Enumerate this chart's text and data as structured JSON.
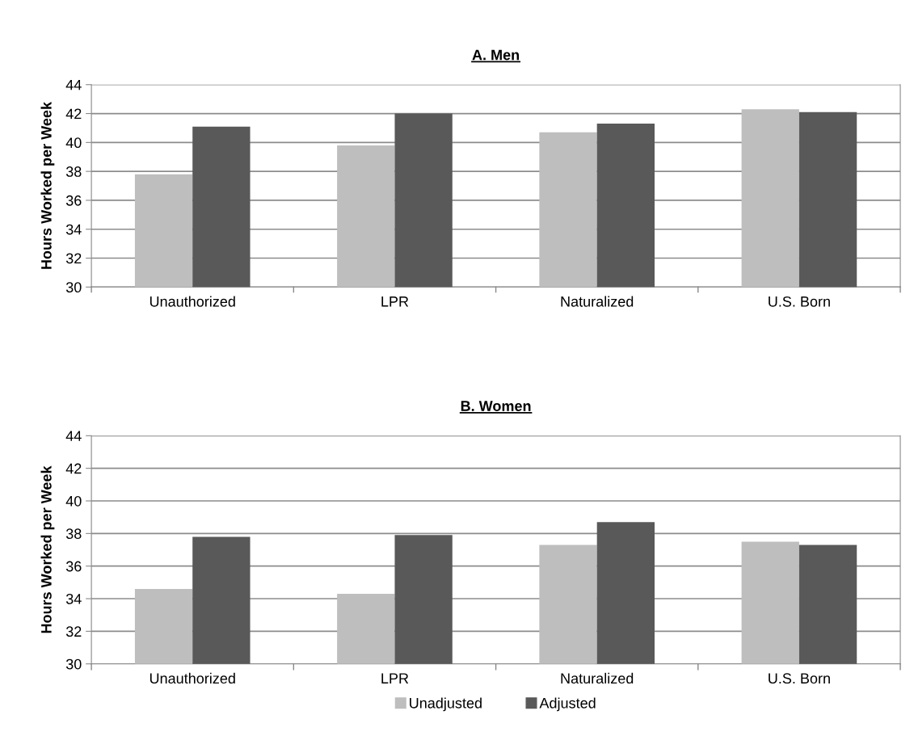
{
  "chart_data": [
    {
      "type": "bar",
      "title": "A. Men",
      "ylabel": "Hours Worked per Week",
      "categories": [
        "Unauthorized",
        "LPR",
        "Naturalized",
        "U.S. Born"
      ],
      "series": [
        {
          "color": "#bebebe",
          "values": [
            37.8,
            39.8,
            40.7,
            42.3
          ]
        },
        {
          "color": "#595959",
          "values": [
            41.1,
            42.0,
            41.3,
            42.1
          ]
        }
      ],
      "ylim": [
        30,
        44
      ],
      "yticks": [
        30,
        32,
        34,
        36,
        38,
        40,
        42,
        44
      ],
      "grid": "y",
      "legend": false
    },
    {
      "type": "bar",
      "title": "B. Women",
      "ylabel": "Hours Worked per Week",
      "categories": [
        "Unauthorized",
        "LPR",
        "Naturalized",
        "U.S. Born"
      ],
      "series": [
        {
          "name": "Unadjusted",
          "color": "#bebebe",
          "values": [
            34.6,
            34.3,
            37.3,
            37.5
          ]
        },
        {
          "name": "Adjusted",
          "color": "#595959",
          "values": [
            37.8,
            37.9,
            38.7,
            37.3
          ]
        }
      ],
      "ylim": [
        30,
        44
      ],
      "yticks": [
        30,
        32,
        34,
        36,
        38,
        40,
        42,
        44
      ],
      "grid": "y",
      "legend": "bottom"
    }
  ]
}
